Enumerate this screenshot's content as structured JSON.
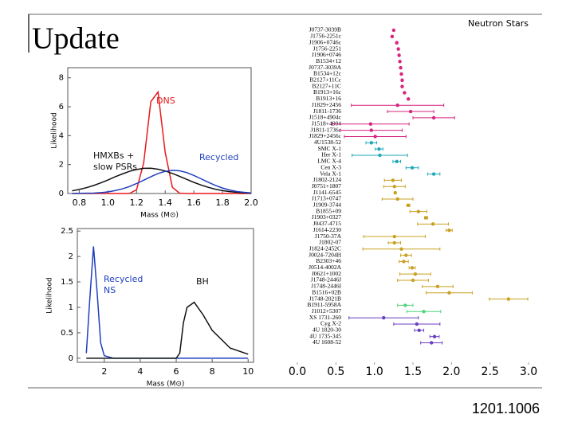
{
  "header": {
    "title": "Update"
  },
  "footer": {
    "reference": "1201.1006"
  },
  "chart_data": [
    {
      "type": "line",
      "xlabel": "Mass (M⊙)",
      "ylabel": "Likelihood",
      "x": [
        0.75,
        0.8,
        0.85,
        0.9,
        0.95,
        1.0,
        1.05,
        1.1,
        1.15,
        1.2,
        1.25,
        1.3,
        1.35,
        1.4,
        1.45,
        1.5,
        1.55,
        1.6,
        1.65,
        1.7,
        1.75,
        1.8,
        1.85,
        1.9,
        1.95,
        2.0
      ],
      "series": [
        {
          "name": [
            "DNS"
          ],
          "color": "#e8191c",
          "values": [
            0,
            0,
            0,
            0,
            0,
            0,
            0,
            0,
            0,
            0.26,
            2.11,
            6.35,
            7.02,
            2.85,
            0.43,
            0.02,
            0,
            0,
            0,
            0,
            0,
            0,
            0,
            0,
            0,
            0
          ]
        },
        {
          "name": [
            "HMXBs +",
            "slow PSRs"
          ],
          "color": "#111111",
          "values": [
            0.18,
            0.28,
            0.4,
            0.55,
            0.73,
            0.93,
            1.15,
            1.35,
            1.53,
            1.66,
            1.74,
            1.75,
            1.68,
            1.56,
            1.39,
            1.19,
            0.98,
            0.77,
            0.59,
            0.43,
            0.3,
            0.2,
            0.13,
            0.08,
            0.05,
            0.03
          ]
        },
        {
          "name": [
            "Recycled"
          ],
          "color": "#1f3fbf",
          "values": [
            0,
            0.01,
            0.02,
            0.03,
            0.06,
            0.11,
            0.2,
            0.32,
            0.48,
            0.69,
            0.92,
            1.16,
            1.38,
            1.53,
            1.6,
            1.57,
            1.45,
            1.25,
            1.02,
            0.78,
            0.56,
            0.38,
            0.24,
            0.14,
            0.08,
            0.04
          ]
        }
      ],
      "xlim": [
        0.72,
        2.0
      ],
      "xticks": [
        0.8,
        {
          "value": 1.0,
          "label": "1.0"
        },
        1.2,
        1.4,
        1.6,
        1.8,
        {
          "value": 2.0,
          "label": "2.0"
        }
      ],
      "ylim": [
        0,
        8.7
      ],
      "yticks": [
        0,
        2,
        4,
        6,
        8
      ]
    },
    {
      "type": "line",
      "xlabel": "Mass (M⊙)",
      "ylabel": "Likelihood",
      "x": [
        1,
        1.2,
        1.4,
        1.6,
        1.8,
        2,
        2.5,
        3,
        4,
        5,
        6,
        6.2,
        6.4,
        6.6,
        7,
        7.5,
        8,
        9,
        10
      ],
      "series": [
        {
          "name": [
            "Recycled",
            "NS"
          ],
          "color": "#1f3fbf",
          "values": [
            0.1,
            1.2,
            2.2,
            1.3,
            0.3,
            0.05,
            0,
            0,
            0,
            0,
            0,
            0,
            0,
            0,
            0,
            0,
            0,
            0,
            0
          ]
        },
        {
          "name": [
            "BH"
          ],
          "color": "#111111",
          "values": [
            0,
            0,
            0,
            0,
            0,
            0,
            0,
            0,
            0,
            0,
            0,
            0.1,
            0.7,
            1.0,
            1.1,
            0.85,
            0.55,
            0.2,
            0.08
          ]
        }
      ],
      "xlim": [
        0.5,
        10.3
      ],
      "xticks": [
        2,
        4,
        6,
        8,
        10
      ],
      "ylim": [
        -0.08,
        2.55
      ],
      "yticks": [
        0,
        0.5,
        1,
        1.5,
        2,
        2.5
      ]
    },
    {
      "type": "errorbar",
      "title": "Neutron Stars",
      "categories": [
        "J0737-3039B",
        "J1756-2251c",
        "J1906+0746c",
        "J1756-2251",
        "J1906+0746",
        "B1534+12",
        "J0737-3039A",
        "B1534+12c",
        "B2127+11Cc",
        "B2127+11C",
        "B1913+16c",
        "B1913+16",
        "J1829+2456",
        "J1811-1736",
        "J1518+4904c",
        "J1518+4904",
        "J1811-1736c",
        "J1829+2456c",
        "4U1538-52",
        "SMC X-1",
        "Her X-1",
        "LMC X-4",
        "Cen X-3",
        "Vela X-1",
        "J1802-2124",
        "J0751+1807",
        "J1141-6545",
        "J1713+0747",
        "J1909-3744",
        "B1855+09",
        "J1903+0327",
        "J0437-4715",
        "J1614-2230",
        "J1750-37A",
        "J1802-07",
        "J1824-2452C",
        "J0024-7204H",
        "B2303+46",
        "J0514-4002A",
        "J0621+1002",
        "J1748-2446J",
        "J1748-2446I",
        "B1516+02B",
        "J1748-2021B",
        "B1911-5958A",
        "J1012+5307",
        "XS 1731-260",
        "Cyg X-2",
        "4U 1820-30",
        "4U 1735-345",
        "4U 1608-52"
      ],
      "values": [
        1.25,
        1.23,
        1.29,
        1.31,
        1.32,
        1.33,
        1.34,
        1.35,
        1.36,
        1.36,
        1.39,
        1.44,
        1.3,
        1.47,
        1.77,
        0.95,
        0.96,
        1.01,
        0.96,
        1.06,
        1.07,
        1.29,
        1.49,
        1.77,
        1.24,
        1.26,
        1.27,
        1.3,
        1.44,
        1.57,
        1.67,
        1.76,
        1.97,
        1.26,
        1.26,
        1.35,
        1.41,
        1.38,
        1.49,
        1.53,
        1.5,
        1.82,
        1.97,
        2.74,
        1.4,
        1.64,
        1.12,
        1.55,
        1.58,
        1.78,
        1.74
      ],
      "errors": [
        0.005,
        0.007,
        0.01,
        0.01,
        0.01,
        0.002,
        0.005,
        0.002,
        0.01,
        0.01,
        0.001,
        0.001,
        0.6,
        0.3,
        0.27,
        0.5,
        0.4,
        0.4,
        0.07,
        0.05,
        0.36,
        0.05,
        0.08,
        0.08,
        0.11,
        0.14,
        0.01,
        0.2,
        0.02,
        0.11,
        0.02,
        0.2,
        0.04,
        0.4,
        0.08,
        0.5,
        0.07,
        0.06,
        0.04,
        0.2,
        0.2,
        0.2,
        0.3,
        0.25,
        0.1,
        0.22,
        0.45,
        0.3,
        0.06,
        0.06,
        0.14
      ],
      "colors": [
        "#d6247f",
        "#d6247f",
        "#d6247f",
        "#d6247f",
        "#d6247f",
        "#d6247f",
        "#d6247f",
        "#d6247f",
        "#d6247f",
        "#d6247f",
        "#d6247f",
        "#d6247f",
        "#d6247f",
        "#d6247f",
        "#d6247f",
        "#d6247f",
        "#d6247f",
        "#d6247f",
        "#1fa9b8",
        "#1fa9b8",
        "#1fa9b8",
        "#1fa9b8",
        "#1fa9b8",
        "#1fa9b8",
        "#c9a021",
        "#c9a021",
        "#c9a021",
        "#c9a021",
        "#c9a021",
        "#c9a021",
        "#c9a021",
        "#c9a021",
        "#c9a021",
        "#c9a021",
        "#c9a021",
        "#c9a021",
        "#c9a021",
        "#c9a021",
        "#c9a021",
        "#c9a021",
        "#c9a021",
        "#c9a021",
        "#c9a021",
        "#c9a021",
        "#4fd27a",
        "#4fd27a",
        "#6b3fc4",
        "#6b3fc4",
        "#6b3fc4",
        "#6b3fc4",
        "#6b3fc4"
      ],
      "xlim": [
        0,
        3
      ],
      "xticks": [
        {
          "value": 0,
          "label": "0.0"
        },
        0.5,
        {
          "value": 1,
          "label": "1.0"
        },
        1.5,
        {
          "value": 2,
          "label": "2.0"
        },
        2.5,
        {
          "value": 3,
          "label": "3.0"
        }
      ]
    }
  ]
}
